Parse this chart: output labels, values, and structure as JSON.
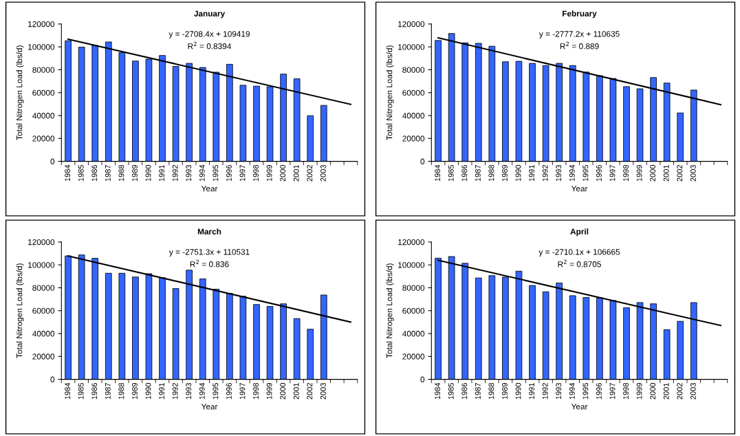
{
  "chart_data": [
    {
      "type": "bar",
      "title": "January",
      "xlabel": "Year",
      "ylabel": "Total Nitrogen Load (lbs/d)",
      "categories": [
        "1984",
        "1985",
        "1986",
        "1987",
        "1988",
        "1989",
        "1990",
        "1991",
        "1992",
        "1993",
        "1994",
        "1995",
        "1996",
        "1997",
        "1998",
        "1999",
        "2000",
        "2001",
        "2002",
        "2003",
        null,
        null
      ],
      "series": [
        {
          "color": "#3366ff",
          "values": [
            105400,
            99800,
            101300,
            104300,
            95000,
            87600,
            89300,
            92500,
            83000,
            85600,
            82000,
            77900,
            84800,
            66500,
            65700,
            65200,
            76200,
            72100,
            39900,
            48900,
            null,
            null
          ]
        },
        {
          "type": "line",
          "color": "#000000",
          "values": [
            106700,
            null,
            null,
            null,
            null,
            null,
            null,
            null,
            null,
            null,
            null,
            null,
            null,
            null,
            null,
            null,
            null,
            null,
            null,
            null,
            null,
            49800
          ]
        }
      ],
      "annotations": [
        "y = -2708.4x + 109419",
        "R$^{2}$ = 0.8394"
      ],
      "ylim": [
        0,
        120000
      ],
      "yticks": [
        0,
        20000,
        40000,
        60000,
        80000,
        100000,
        120000
      ],
      "grid": false,
      "legend": false
    },
    {
      "type": "bar",
      "title": "February",
      "xlabel": "Year",
      "ylabel": "Total Nitrogen Load (lbs/d)",
      "categories": [
        "1984",
        "1985",
        "1986",
        "1987",
        "1988",
        "1989",
        "1990",
        "1991",
        "1992",
        "1993",
        "1994",
        "1995",
        "1996",
        "1997",
        "1998",
        "1999",
        "2000",
        "2001",
        "2002",
        "2003",
        null,
        null
      ],
      "series": [
        {
          "color": "#3366ff",
          "values": [
            105600,
            111700,
            103500,
            103100,
            100600,
            87000,
            87400,
            85600,
            83700,
            85600,
            83700,
            78000,
            74900,
            72400,
            65300,
            63400,
            73200,
            68400,
            42300,
            62300,
            null,
            null
          ]
        },
        {
          "type": "line",
          "color": "#000000",
          "values": [
            107900,
            null,
            null,
            null,
            null,
            null,
            null,
            null,
            null,
            null,
            null,
            null,
            null,
            null,
            null,
            null,
            null,
            null,
            null,
            null,
            null,
            49500
          ]
        }
      ],
      "annotations": [
        "y = -2777.2x + 110635",
        "R$^{2}$ = 0.889"
      ],
      "ylim": [
        0,
        120000
      ],
      "yticks": [
        0,
        20000,
        40000,
        60000,
        80000,
        100000,
        120000
      ],
      "grid": false,
      "legend": false
    },
    {
      "type": "bar",
      "title": "March",
      "xlabel": "Year",
      "ylabel": "Total Nitrogen Load (lbs/d)",
      "categories": [
        "1984",
        "1985",
        "1986",
        "1987",
        "1988",
        "1989",
        "1990",
        "1991",
        "1992",
        "1993",
        "1994",
        "1995",
        "1996",
        "1997",
        "1998",
        "1999",
        "2000",
        "2001",
        "2002",
        "2003",
        null,
        null
      ],
      "series": [
        {
          "color": "#3366ff",
          "values": [
            107900,
            108700,
            105800,
            92700,
            92700,
            89400,
            92300,
            88800,
            79300,
            95400,
            87800,
            78800,
            75100,
            72600,
            65400,
            63700,
            66000,
            53100,
            43800,
            73700,
            null,
            null
          ]
        },
        {
          "type": "line",
          "color": "#000000",
          "values": [
            107800,
            null,
            null,
            null,
            null,
            null,
            null,
            null,
            null,
            null,
            null,
            null,
            null,
            null,
            null,
            null,
            null,
            null,
            null,
            null,
            null,
            50000
          ]
        }
      ],
      "annotations": [
        "y = -2751.3x + 110531",
        "R$^{2}$ = 0.836"
      ],
      "ylim": [
        0,
        120000
      ],
      "yticks": [
        0,
        20000,
        40000,
        60000,
        80000,
        100000,
        120000
      ],
      "grid": false,
      "legend": false
    },
    {
      "type": "bar",
      "title": "April",
      "xlabel": "Year",
      "ylabel": "Total Nitrogen Load (lbs/d)",
      "categories": [
        "1984",
        "1985",
        "1986",
        "1987",
        "1988",
        "1989",
        "1990",
        "1991",
        "1992",
        "1993",
        "1994",
        "1995",
        "1996",
        "1997",
        "1998",
        "1999",
        "2000",
        "2001",
        "2002",
        "2003",
        null,
        null
      ],
      "series": [
        {
          "color": "#3366ff",
          "values": [
            105900,
            107300,
            101400,
            88600,
            90600,
            89300,
            94500,
            82000,
            76500,
            84200,
            73100,
            71500,
            71200,
            68900,
            62600,
            67100,
            66000,
            43400,
            50700,
            67100,
            null,
            null
          ]
        },
        {
          "type": "line",
          "color": "#000000",
          "values": [
            104000,
            null,
            null,
            null,
            null,
            null,
            null,
            null,
            null,
            null,
            null,
            null,
            null,
            null,
            null,
            null,
            null,
            null,
            null,
            null,
            null,
            47000
          ]
        }
      ],
      "annotations": [
        "y = -2710.1x + 106665",
        "R$^{2}$ = 0.8705"
      ],
      "ylim": [
        0,
        120000
      ],
      "yticks": [
        0,
        20000,
        40000,
        60000,
        80000,
        100000,
        120000
      ],
      "grid": false,
      "legend": false
    }
  ]
}
